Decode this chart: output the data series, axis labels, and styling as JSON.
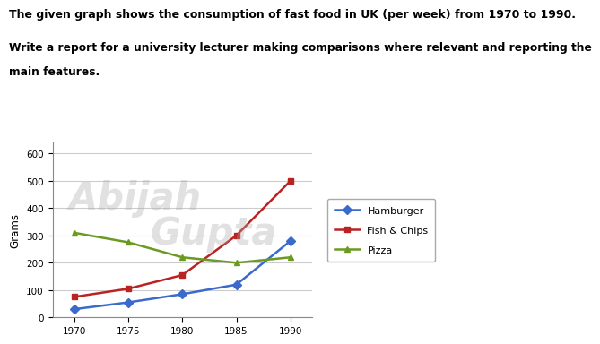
{
  "title_line1": "The given graph shows the consumption of fast food in UK (per week) from 1970 to 1990.",
  "subtitle_line1": "Write a report for a university lecturer making comparisons where relevant and reporting the",
  "subtitle_line2": "main features.",
  "years": [
    1970,
    1975,
    1980,
    1985,
    1990
  ],
  "hamburger": [
    30,
    55,
    85,
    120,
    280
  ],
  "fish_chips": [
    75,
    105,
    155,
    300,
    500
  ],
  "pizza": [
    310,
    275,
    220,
    200,
    220
  ],
  "hamburger_color": "#3a6bcc",
  "fish_chips_color": "#bb2222",
  "pizza_color": "#6a9a22",
  "ylabel": "Grams",
  "ylim": [
    0,
    640
  ],
  "yticks": [
    0,
    100,
    200,
    300,
    400,
    500,
    600
  ],
  "xlim_left": 1968,
  "xlim_right": 1992,
  "xticks": [
    1970,
    1975,
    1980,
    1985,
    1990
  ],
  "background_color": "#ffffff",
  "watermark1": "Abijah",
  "watermark2": "Gupta",
  "legend_labels": [
    "Hamburger",
    "Fish & Chips",
    "Pizza"
  ],
  "title_fontsize": 9.0,
  "subtitle_fontsize": 8.8
}
